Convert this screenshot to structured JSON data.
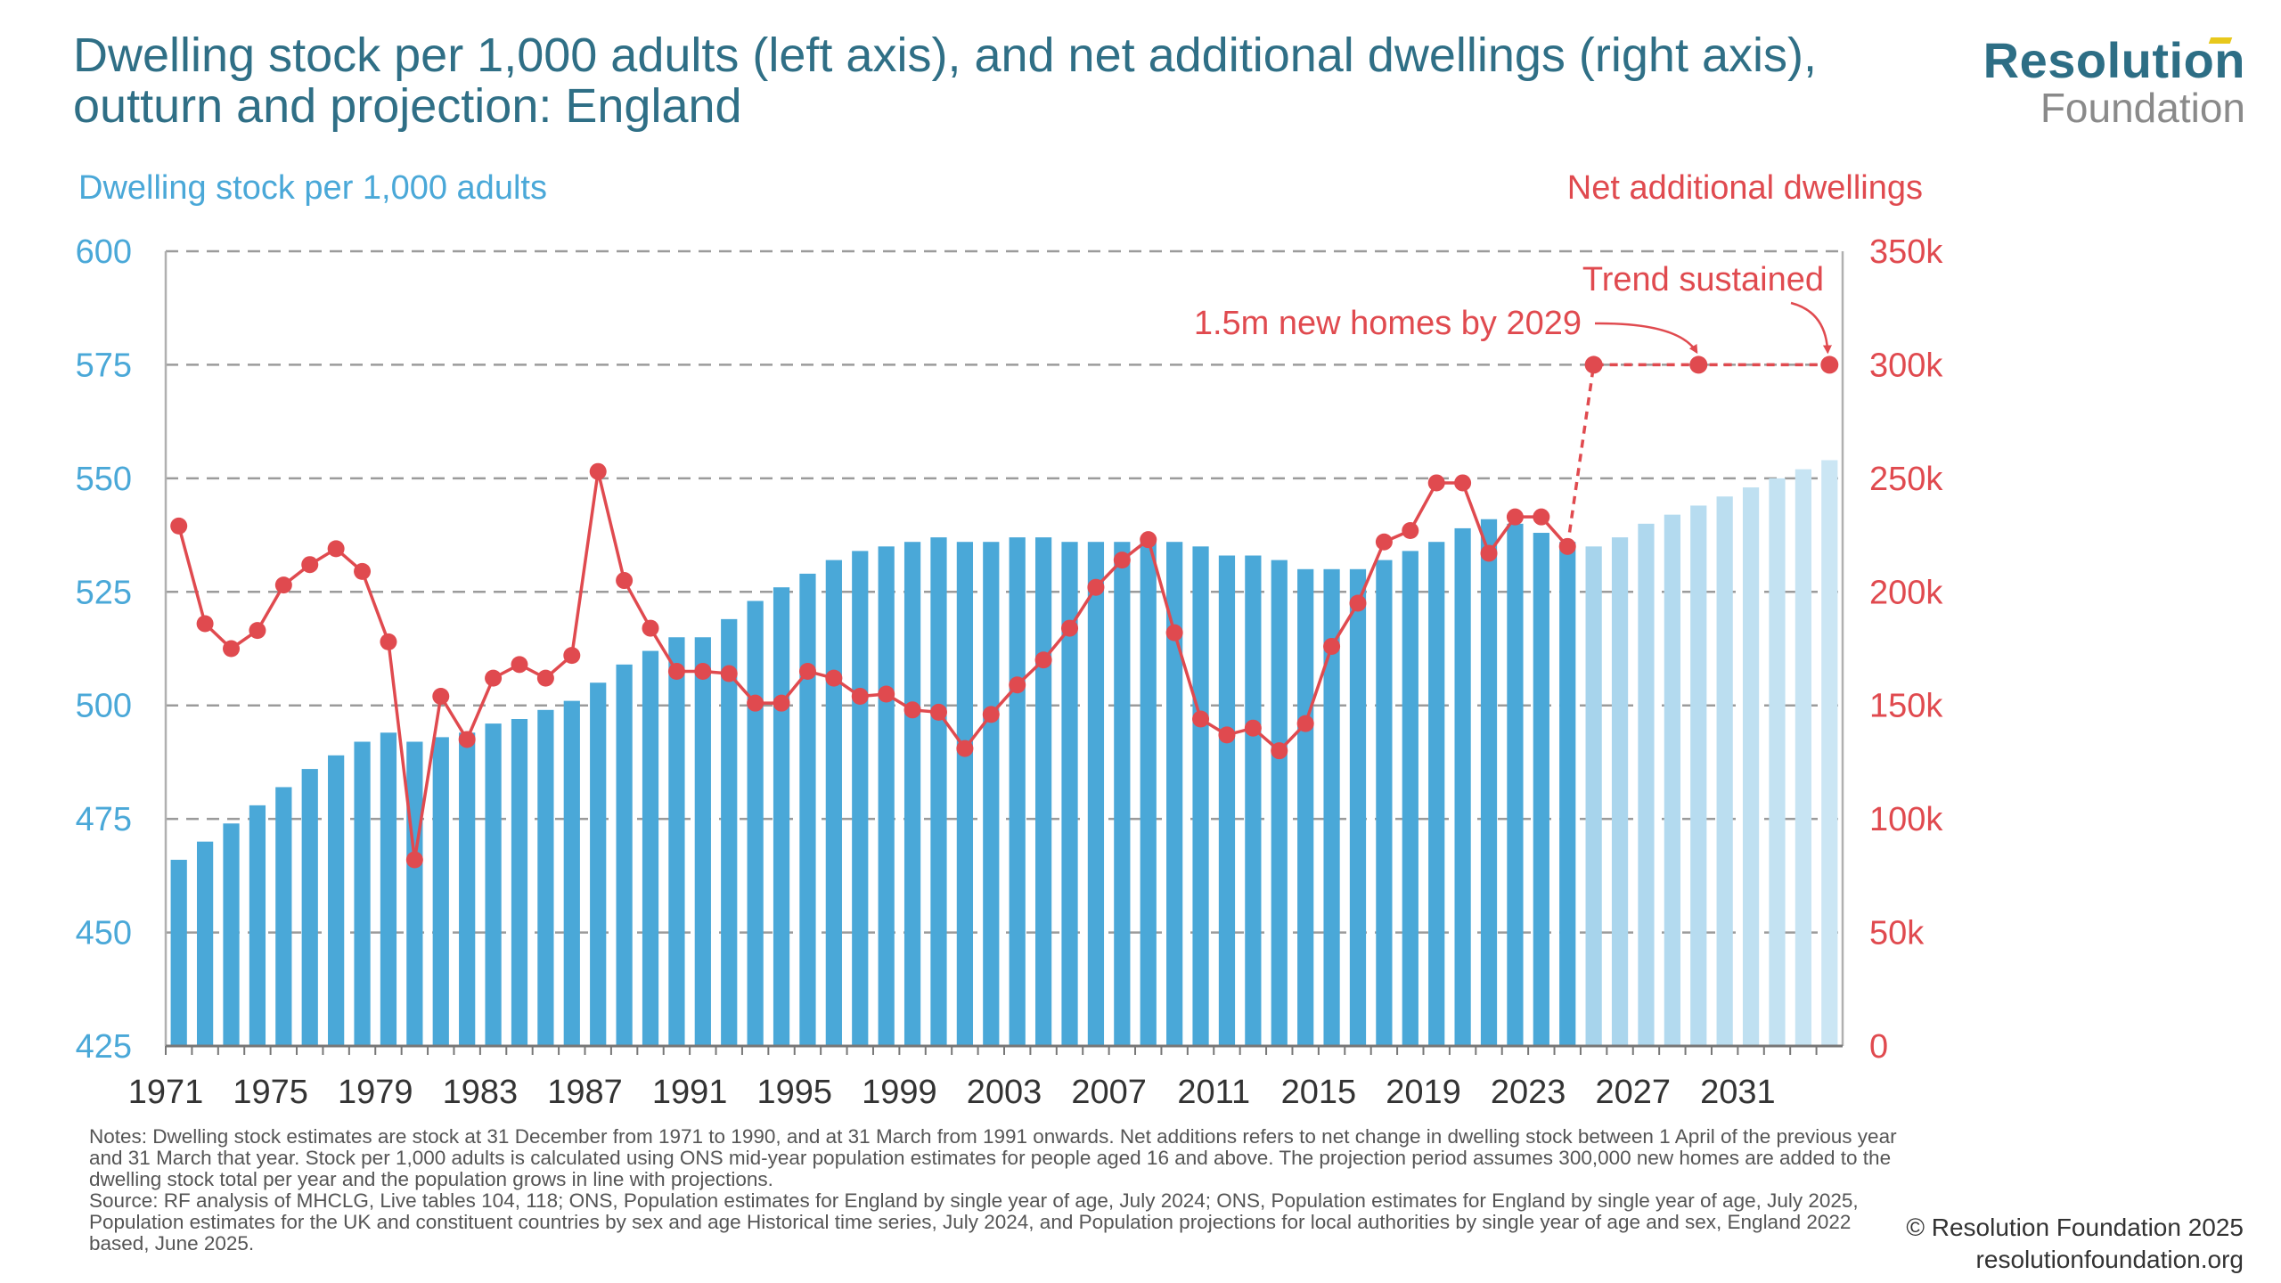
{
  "title": "Dwelling stock per 1,000 adults (left axis), and net additional dwellings (right axis), outturn and projection: England",
  "logo": {
    "main": "Resolution",
    "sub": "Foundation"
  },
  "left_axis_title": "Dwelling stock per 1,000 adults",
  "right_axis_title": "Net additional dwellings",
  "notes": "Notes: Dwelling stock estimates are stock at 31 December from 1971 to 1990, and at 31 March from 1991 onwards. Net additions refers to net change in dwelling stock between 1 April of the previous year and 31 March that year. Stock per 1,000 adults is calculated using ONS mid-year population estimates for people aged 16 and above. The projection period assumes 300,000 new homes are added to the dwelling stock total per year and the population grows in line with projections.",
  "source": "Source: RF analysis of MHCLG, Live tables 104, 118; ONS, Population estimates for England by single year of age, July 2024; ONS, Population estimates for England by single year of age, July 2025, Population estimates for the UK and constituent countries by sex and age Historical time series, July 2024, and Population projections for local authorities by single year of age and sex, England 2022 based, June 2025.",
  "copyright": "© Resolution Foundation 2025",
  "website": "resolutionfoundation.org",
  "colors": {
    "bar_outturn": "#4aa8d8",
    "bar_projection_start": "#a7d4ec",
    "bar_projection_end": "#cbe6f4",
    "line": "#e04a4f",
    "left_axis": "#4aa8d8",
    "right_axis": "#e04a4f",
    "grid": "#9b9b9b",
    "axis_text": "#333333"
  },
  "chart_data": {
    "type": "bar+line",
    "x_categories": [
      1971,
      1972,
      1973,
      1974,
      1975,
      1976,
      1977,
      1978,
      1979,
      1980,
      1981,
      1982,
      1983,
      1984,
      1985,
      1986,
      1987,
      1988,
      1989,
      1990,
      1991,
      1992,
      1993,
      1994,
      1995,
      1996,
      1997,
      1998,
      1999,
      2000,
      2001,
      2002,
      2003,
      2004,
      2005,
      2006,
      2007,
      2008,
      2009,
      2010,
      2011,
      2012,
      2013,
      2014,
      2015,
      2016,
      2017,
      2018,
      2019,
      2020,
      2021,
      2022,
      2023,
      2024,
      2025,
      2026,
      2027,
      2028,
      2029,
      2030,
      2031,
      2032,
      2033,
      2034
    ],
    "x_tick_labels": [
      "1971",
      "1975",
      "1979",
      "1983",
      "1987",
      "1991",
      "1995",
      "1999",
      "2003",
      "2007",
      "2011",
      "2015",
      "2019",
      "2023",
      "2027",
      "2031"
    ],
    "bar_series": {
      "name": "Dwelling stock per 1,000 adults",
      "axis": "left",
      "outturn_years": [
        1971,
        2024
      ],
      "projection_years": [
        2025,
        2034
      ],
      "values": [
        466,
        470,
        474,
        478,
        482,
        486,
        489,
        492,
        494,
        492,
        493,
        494,
        496,
        497,
        499,
        501,
        505,
        509,
        512,
        515,
        515,
        519,
        523,
        526,
        529,
        532,
        534,
        535,
        536,
        537,
        536,
        536,
        537,
        537,
        536,
        536,
        536,
        537,
        536,
        535,
        533,
        533,
        532,
        530,
        530,
        530,
        532,
        534,
        536,
        539,
        541,
        540,
        538,
        536,
        535,
        537,
        540,
        542,
        544,
        546,
        548,
        550,
        552,
        554
      ]
    },
    "line_series": {
      "name": "Net additional dwellings",
      "axis": "right",
      "years": [
        1971,
        1972,
        1973,
        1974,
        1975,
        1976,
        1977,
        1978,
        1979,
        1980,
        1981,
        1982,
        1983,
        1984,
        1985,
        1986,
        1987,
        1988,
        1989,
        1990,
        1991,
        1992,
        1993,
        1994,
        1995,
        1996,
        1997,
        1998,
        1999,
        2000,
        2001,
        2002,
        2003,
        2004,
        2005,
        2006,
        2007,
        2008,
        2009,
        2010,
        2011,
        2012,
        2013,
        2014,
        2015,
        2016,
        2017,
        2018,
        2019,
        2020,
        2021,
        2022,
        2023,
        2024
      ],
      "values": [
        229000,
        186000,
        175000,
        183000,
        203000,
        212000,
        219000,
        209000,
        178000,
        82000,
        154000,
        135000,
        162000,
        168000,
        162000,
        172000,
        253000,
        205000,
        184000,
        165000,
        165000,
        164000,
        151000,
        151000,
        165000,
        162000,
        154000,
        155000,
        148000,
        147000,
        131000,
        146000,
        159000,
        170000,
        184000,
        202000,
        214000,
        223000,
        182000,
        144000,
        137000,
        140000,
        130000,
        142000,
        176000,
        195000,
        222000,
        227000,
        248000,
        248000,
        217000,
        233000,
        233000,
        220000
      ]
    },
    "projection_line_series": {
      "name": "1.5m new homes by 2029 / Trend sustained",
      "axis": "right",
      "style": "dashed",
      "points": [
        [
          2024,
          220000
        ],
        [
          2025,
          300000
        ],
        [
          2029,
          300000
        ],
        [
          2034,
          300000
        ]
      ],
      "markers": [
        2025,
        2029,
        2034
      ]
    },
    "annotations": [
      {
        "text": "1.5m new homes by 2029",
        "points_to": [
          2029,
          300000
        ]
      },
      {
        "text": "Trend sustained",
        "points_to": [
          2034,
          300000
        ]
      }
    ],
    "left_axis": {
      "min": 425,
      "max": 600,
      "ticks": [
        425,
        450,
        475,
        500,
        525,
        550,
        575,
        600
      ],
      "tick_labels": [
        "425",
        "450",
        "475",
        "500",
        "525",
        "550",
        "575",
        "600"
      ]
    },
    "right_axis": {
      "min": 0,
      "max": 350000,
      "ticks": [
        0,
        50000,
        100000,
        150000,
        200000,
        250000,
        300000,
        350000
      ],
      "tick_labels": [
        "0",
        "50k",
        "100k",
        "150k",
        "200k",
        "250k",
        "300k",
        "350k"
      ]
    },
    "grid": "horizontal dashed",
    "legend": "none"
  }
}
